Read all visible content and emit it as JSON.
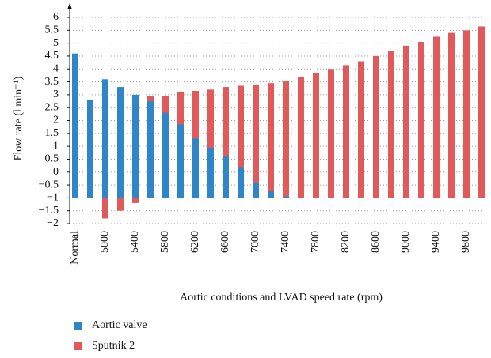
{
  "chart_data": {
    "type": "bar",
    "x_label": "Aortic conditions and LVAD speed rate (rpm)",
    "y_label": "Flow rate (l min⁻¹)",
    "categories": [
      "Normal",
      null,
      "5000",
      null,
      "5400",
      null,
      "5800",
      null,
      "6200",
      null,
      "6600",
      null,
      "7000",
      null,
      "7400",
      null,
      "7800",
      null,
      "8200",
      null,
      "8600",
      null,
      "9000",
      null,
      "9400",
      null,
      "9800",
      null
    ],
    "series": [
      {
        "name": "Sputnik 2",
        "color": "#e05a5c",
        "values": [
          null,
          null,
          -1.8,
          -1.5,
          -1.2,
          2.95,
          2.95,
          3.1,
          3.15,
          3.2,
          3.3,
          3.35,
          3.4,
          3.45,
          3.55,
          3.7,
          3.85,
          4.0,
          4.15,
          4.3,
          4.5,
          4.7,
          4.9,
          5.05,
          5.25,
          5.4,
          5.5,
          5.65
        ]
      },
      {
        "name": "Aortic valve",
        "color": "#2e86c8",
        "values": [
          4.6,
          2.8,
          3.6,
          3.3,
          3.0,
          2.75,
          2.3,
          1.85,
          1.3,
          0.95,
          0.6,
          0.2,
          -0.4,
          -0.75,
          -0.95,
          null,
          null,
          null,
          null,
          null,
          null,
          null,
          null,
          null,
          null,
          null,
          null,
          null
        ]
      }
    ],
    "baseline": -1,
    "ylim": [
      -2,
      6
    ],
    "yticks": [
      {
        "value": -2,
        "label": "−2"
      },
      {
        "value": -1.5,
        "label": "−1.5"
      },
      {
        "value": -1,
        "label": "−1"
      },
      {
        "value": -0.5,
        "label": "−0.5"
      },
      0,
      0.5,
      1,
      1.5,
      2,
      2.5,
      3,
      3.5,
      4,
      4.5,
      5,
      5.5,
      6
    ],
    "grid": true,
    "legend_order": [
      1,
      0
    ]
  }
}
